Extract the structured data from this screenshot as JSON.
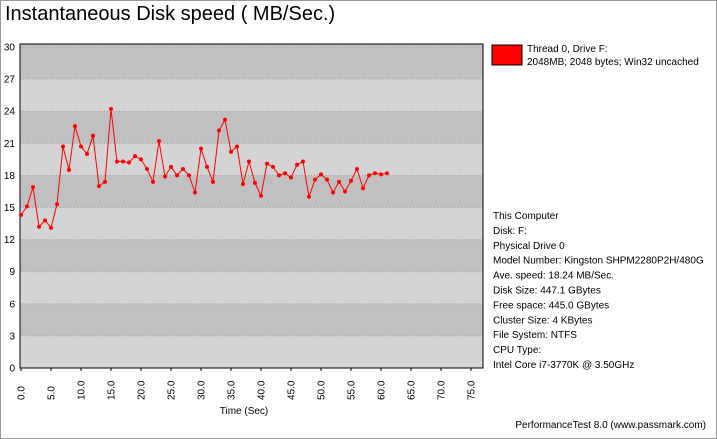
{
  "chart_data": {
    "type": "line",
    "title": "Instantaneous Disk speed ( MB/Sec.)",
    "x_label": "Time (Sec)",
    "x": [
      0,
      1,
      2,
      3,
      4,
      5,
      6,
      7,
      8,
      9,
      10,
      11,
      12,
      13,
      14,
      15,
      16,
      17,
      18,
      19,
      20,
      21,
      22,
      23,
      24,
      25,
      26,
      27,
      28,
      29,
      30,
      31,
      32,
      33,
      34,
      35,
      36,
      37,
      38,
      39,
      40,
      41,
      42,
      43,
      44,
      45,
      46,
      47,
      48,
      49,
      50,
      51,
      52,
      53,
      54,
      55,
      56,
      57,
      58,
      59,
      60,
      61
    ],
    "series": [
      {
        "name": "Thread 0, Drive F:",
        "description": "2048MB; 2048 bytes; Win32 uncached",
        "color": "#ff0000",
        "values": [
          14.3,
          15.1,
          16.9,
          13.2,
          13.8,
          13.1,
          15.3,
          20.7,
          18.5,
          22.6,
          20.7,
          20.0,
          21.7,
          17.0,
          17.4,
          24.2,
          19.3,
          19.3,
          19.2,
          19.8,
          19.5,
          18.6,
          17.4,
          21.2,
          17.9,
          18.8,
          18.0,
          18.6,
          18.0,
          16.4,
          20.5,
          18.8,
          17.4,
          22.2,
          23.2,
          20.2,
          20.7,
          17.2,
          19.3,
          17.3,
          16.1,
          19.1,
          18.8,
          18.0,
          18.2,
          17.8,
          19.0,
          19.3,
          16.0,
          17.6,
          18.1,
          17.6,
          16.4,
          17.4,
          16.5,
          17.5,
          18.6,
          16.8,
          18.0,
          18.2,
          18.1,
          18.2
        ]
      }
    ],
    "xlim": [
      0,
      77
    ],
    "xticks": [
      {
        "value": 0,
        "label": "0.0"
      },
      {
        "value": 5,
        "label": "5.0"
      },
      {
        "value": 10,
        "label": "10.0"
      },
      {
        "value": 15,
        "label": "15.0"
      },
      {
        "value": 20,
        "label": "20.0"
      },
      {
        "value": 25,
        "label": "25.0"
      },
      {
        "value": 30,
        "label": "30.0"
      },
      {
        "value": 35,
        "label": "35.0"
      },
      {
        "value": 40,
        "label": "40.0"
      },
      {
        "value": 45,
        "label": "45.0"
      },
      {
        "value": 50,
        "label": "50.0"
      },
      {
        "value": 55,
        "label": "55.0"
      },
      {
        "value": 60,
        "label": "60.0"
      },
      {
        "value": 65,
        "label": "65.0"
      },
      {
        "value": 70,
        "label": "70.0"
      },
      {
        "value": 75,
        "label": "75.0"
      }
    ],
    "ylim": [
      0,
      30
    ],
    "yticks": [
      0,
      3,
      6,
      9,
      12,
      15,
      18,
      21,
      24,
      27,
      30
    ],
    "grid": true,
    "annotations": [
      "This Computer",
      "Disk: F:",
      "Physical Drive 0",
      "Model Number: Kingston SHPM2280P2H/480G",
      "Ave. speed: 18.24 MB/Sec.",
      "Disk Size: 447.1 GBytes",
      "Free space: 445.0 GBytes",
      "Cluster Size: 4 KBytes",
      "File System: NTFS",
      "CPU Type:",
      "Intel Core i7-3770K @ 3.50GHz"
    ],
    "footer": "PerformanceTest 8.0 (www.passmark.com)"
  }
}
